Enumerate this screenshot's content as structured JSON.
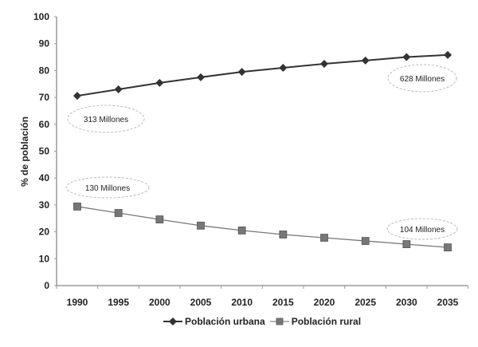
{
  "chart_data": {
    "type": "line",
    "title": "",
    "xlabel": "",
    "ylabel": "% de población",
    "ylim": [
      0,
      100
    ],
    "yticks": [
      0,
      10,
      20,
      30,
      40,
      50,
      60,
      70,
      80,
      90,
      100
    ],
    "grid": false,
    "legend_position": "bottom",
    "x": [
      "1990",
      "1995",
      "2000",
      "2005",
      "2010",
      "2015",
      "2020",
      "2025",
      "2030",
      "2035"
    ],
    "series": [
      {
        "name": "Población urbana",
        "marker": "diamond",
        "color": "#333333",
        "values": [
          70.6,
          73.0,
          75.4,
          77.5,
          79.5,
          81.0,
          82.5,
          83.7,
          85.0,
          85.8
        ]
      },
      {
        "name": "Población rural",
        "marker": "square",
        "color": "#777777",
        "values": [
          29.4,
          27.0,
          24.6,
          22.3,
          20.5,
          19.0,
          17.8,
          16.6,
          15.4,
          14.2
        ]
      }
    ],
    "annotations": [
      {
        "text": "313 Millones",
        "near": "Población urbana 1990"
      },
      {
        "text": "628 Millones",
        "near": "Población urbana 2035"
      },
      {
        "text": "130 Millones",
        "near": "Población rural 1990"
      },
      {
        "text": "104 Millones",
        "near": "Población rural 2035"
      }
    ]
  },
  "legend": {
    "urban_label": "Población urbana",
    "rural_label": "Población rural"
  }
}
